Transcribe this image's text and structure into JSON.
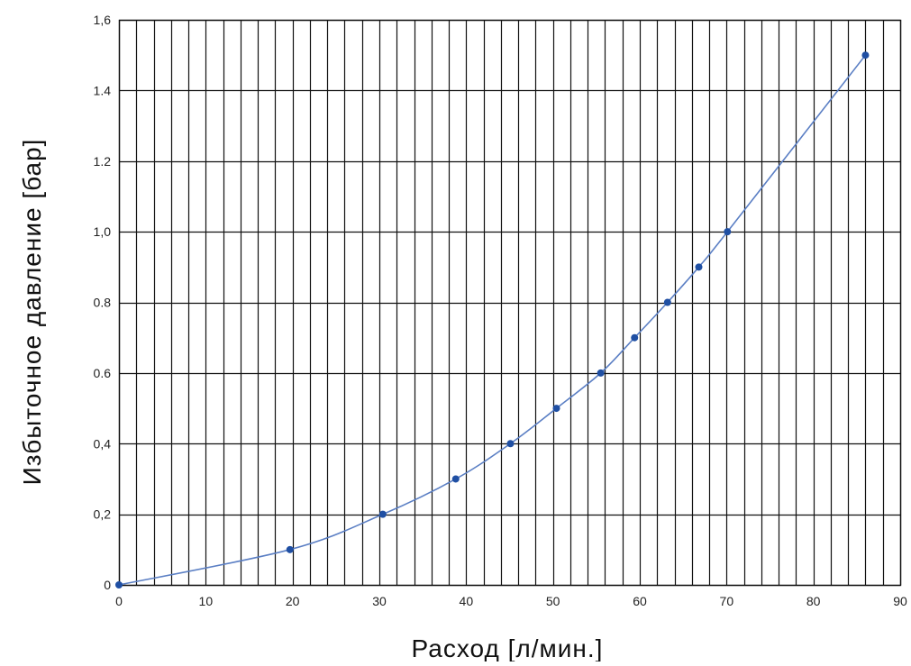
{
  "chart_data": {
    "type": "line",
    "title": "",
    "xlabel": "Расход [л/мин.]",
    "ylabel": "Избыточное давление [бар]",
    "xlim": [
      0,
      90
    ],
    "ylim": [
      0,
      1.6
    ],
    "x_ticks": [
      {
        "value": 0,
        "label": "0"
      },
      {
        "value": 10,
        "label": "10"
      },
      {
        "value": 20,
        "label": "20"
      },
      {
        "value": 30,
        "label": "30"
      },
      {
        "value": 40,
        "label": "40"
      },
      {
        "value": 50,
        "label": "50"
      },
      {
        "value": 60,
        "label": "60"
      },
      {
        "value": 70,
        "label": "70"
      },
      {
        "value": 80,
        "label": "80"
      },
      {
        "value": 90,
        "label": "90"
      }
    ],
    "y_ticks": [
      {
        "value": 0,
        "label": "0"
      },
      {
        "value": 0.2,
        "label": "0,2"
      },
      {
        "value": 0.4,
        "label": "0,4"
      },
      {
        "value": 0.6,
        "label": "0.6"
      },
      {
        "value": 0.8,
        "label": "0.8"
      },
      {
        "value": 1.0,
        "label": "1,0"
      },
      {
        "value": 1.2,
        "label": "1.2"
      },
      {
        "value": 1.4,
        "label": "1.4"
      },
      {
        "value": 1.6,
        "label": "1,6"
      }
    ],
    "grid": true,
    "minor_x_step": 2,
    "colors": {
      "line": "#5b7fc4",
      "marker": "#1f4fa3",
      "grid": "#111111"
    },
    "series": [
      {
        "x": [
          0,
          19.7,
          30.4,
          38.8,
          45.1,
          50.4,
          55.5,
          59.4,
          63.2,
          66.8,
          70.1,
          86
        ],
        "y": [
          0,
          0.1,
          0.2,
          0.3,
          0.4,
          0.5,
          0.6,
          0.7,
          0.8,
          0.9,
          1.0,
          1.5
        ]
      }
    ]
  }
}
